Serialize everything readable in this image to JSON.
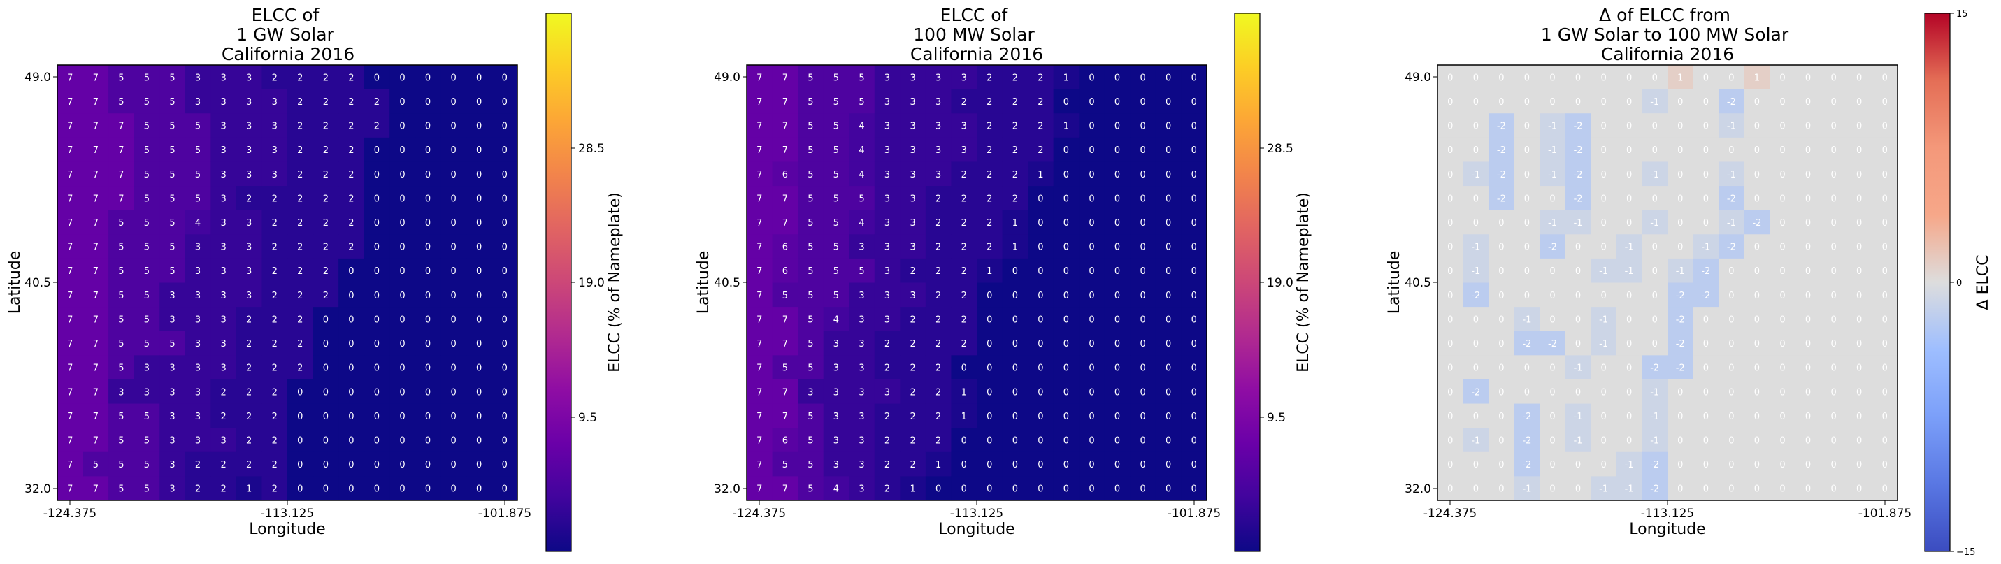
{
  "chart_data": [
    {
      "type": "heatmap",
      "title": "ELCC of\n1 GW Solar\nCalifornia 2016",
      "xlabel": "Longitude",
      "ylabel": "Latitude",
      "xticks": [
        "-124.375",
        "-113.125",
        "-101.875"
      ],
      "yticks": [
        "49.0",
        "40.5",
        "32.0"
      ],
      "colorbar": {
        "label": "ELCC (% of Nameplate)",
        "ticks": [
          "9.5",
          "19.0",
          "28.5"
        ],
        "range": [
          0,
          38
        ],
        "colormap": "plasma"
      },
      "rows_top_to_bottom": [
        [
          7,
          7,
          5,
          5,
          5,
          3,
          3,
          3,
          2,
          2,
          2,
          2,
          0,
          0,
          0,
          0,
          0,
          0
        ],
        [
          7,
          7,
          5,
          5,
          5,
          3,
          3,
          3,
          3,
          2,
          2,
          2,
          2,
          0,
          0,
          0,
          0,
          0
        ],
        [
          7,
          7,
          7,
          5,
          5,
          5,
          3,
          3,
          3,
          2,
          2,
          2,
          2,
          0,
          0,
          0,
          0,
          0
        ],
        [
          7,
          7,
          7,
          5,
          5,
          5,
          3,
          3,
          3,
          2,
          2,
          2,
          0,
          0,
          0,
          0,
          0,
          0
        ],
        [
          7,
          7,
          7,
          5,
          5,
          5,
          3,
          3,
          3,
          2,
          2,
          2,
          0,
          0,
          0,
          0,
          0,
          0
        ],
        [
          7,
          7,
          7,
          5,
          5,
          5,
          3,
          2,
          2,
          2,
          2,
          2,
          0,
          0,
          0,
          0,
          0,
          0
        ],
        [
          7,
          7,
          5,
          5,
          5,
          4,
          3,
          3,
          2,
          2,
          2,
          2,
          0,
          0,
          0,
          0,
          0,
          0
        ],
        [
          7,
          7,
          5,
          5,
          5,
          3,
          3,
          3,
          2,
          2,
          2,
          2,
          0,
          0,
          0,
          0,
          0,
          0
        ],
        [
          7,
          7,
          5,
          5,
          5,
          3,
          3,
          3,
          2,
          2,
          2,
          0,
          0,
          0,
          0,
          0,
          0,
          0
        ],
        [
          7,
          7,
          5,
          5,
          3,
          3,
          3,
          3,
          2,
          2,
          2,
          0,
          0,
          0,
          0,
          0,
          0,
          0
        ],
        [
          7,
          7,
          5,
          5,
          3,
          3,
          3,
          2,
          2,
          2,
          0,
          0,
          0,
          0,
          0,
          0,
          0,
          0
        ],
        [
          7,
          7,
          5,
          5,
          5,
          3,
          3,
          2,
          2,
          2,
          0,
          0,
          0,
          0,
          0,
          0,
          0,
          0
        ],
        [
          7,
          7,
          5,
          3,
          3,
          3,
          3,
          2,
          2,
          2,
          0,
          0,
          0,
          0,
          0,
          0,
          0,
          0
        ],
        [
          7,
          7,
          3,
          3,
          3,
          3,
          2,
          2,
          2,
          0,
          0,
          0,
          0,
          0,
          0,
          0,
          0,
          0
        ],
        [
          7,
          7,
          5,
          5,
          3,
          3,
          2,
          2,
          2,
          0,
          0,
          0,
          0,
          0,
          0,
          0,
          0,
          0
        ],
        [
          7,
          7,
          5,
          5,
          3,
          3,
          3,
          2,
          2,
          0,
          0,
          0,
          0,
          0,
          0,
          0,
          0,
          0
        ],
        [
          7,
          5,
          5,
          5,
          3,
          2,
          2,
          2,
          2,
          0,
          0,
          0,
          0,
          0,
          0,
          0,
          0,
          0
        ],
        [
          7,
          7,
          5,
          5,
          3,
          2,
          2,
          1,
          2,
          0,
          0,
          0,
          0,
          0,
          0,
          0,
          0,
          0
        ]
      ]
    },
    {
      "type": "heatmap",
      "title": "ELCC of\n100 MW Solar\nCalifornia 2016",
      "xlabel": "Longitude",
      "ylabel": "Latitude",
      "xticks": [
        "-124.375",
        "-113.125",
        "-101.875"
      ],
      "yticks": [
        "49.0",
        "40.5",
        "32.0"
      ],
      "colorbar": {
        "label": "ELCC (% of Nameplate)",
        "ticks": [
          "9.5",
          "19.0",
          "28.5"
        ],
        "range": [
          0,
          38
        ],
        "colormap": "plasma"
      },
      "rows_top_to_bottom": [
        [
          7,
          7,
          5,
          5,
          5,
          3,
          3,
          3,
          3,
          2,
          2,
          2,
          1,
          0,
          0,
          0,
          0,
          0
        ],
        [
          7,
          7,
          5,
          5,
          5,
          3,
          3,
          3,
          2,
          2,
          2,
          2,
          0,
          0,
          0,
          0,
          0,
          0
        ],
        [
          7,
          7,
          5,
          5,
          4,
          3,
          3,
          3,
          3,
          2,
          2,
          2,
          1,
          0,
          0,
          0,
          0,
          0
        ],
        [
          7,
          7,
          5,
          5,
          4,
          3,
          3,
          3,
          3,
          2,
          2,
          2,
          0,
          0,
          0,
          0,
          0,
          0
        ],
        [
          7,
          6,
          5,
          5,
          4,
          3,
          3,
          3,
          2,
          2,
          2,
          1,
          0,
          0,
          0,
          0,
          0,
          0
        ],
        [
          7,
          7,
          5,
          5,
          5,
          3,
          3,
          2,
          2,
          2,
          2,
          0,
          0,
          0,
          0,
          0,
          0,
          0
        ],
        [
          7,
          7,
          5,
          5,
          4,
          3,
          3,
          2,
          2,
          2,
          1,
          0,
          0,
          0,
          0,
          0,
          0,
          0
        ],
        [
          7,
          6,
          5,
          5,
          3,
          3,
          3,
          2,
          2,
          2,
          1,
          0,
          0,
          0,
          0,
          0,
          0,
          0
        ],
        [
          7,
          6,
          5,
          5,
          5,
          3,
          2,
          2,
          2,
          1,
          0,
          0,
          0,
          0,
          0,
          0,
          0,
          0
        ],
        [
          7,
          5,
          5,
          5,
          3,
          3,
          3,
          2,
          2,
          0,
          0,
          0,
          0,
          0,
          0,
          0,
          0,
          0
        ],
        [
          7,
          7,
          5,
          4,
          3,
          3,
          2,
          2,
          2,
          0,
          0,
          0,
          0,
          0,
          0,
          0,
          0,
          0
        ],
        [
          7,
          7,
          5,
          3,
          3,
          2,
          2,
          2,
          2,
          0,
          0,
          0,
          0,
          0,
          0,
          0,
          0,
          0
        ],
        [
          7,
          5,
          5,
          3,
          3,
          2,
          2,
          2,
          0,
          0,
          0,
          0,
          0,
          0,
          0,
          0,
          0,
          0
        ],
        [
          7,
          7,
          3,
          3,
          3,
          3,
          2,
          2,
          1,
          0,
          0,
          0,
          0,
          0,
          0,
          0,
          0,
          0
        ],
        [
          7,
          7,
          5,
          3,
          3,
          2,
          2,
          2,
          1,
          0,
          0,
          0,
          0,
          0,
          0,
          0,
          0,
          0
        ],
        [
          7,
          6,
          5,
          3,
          3,
          2,
          2,
          2,
          0,
          0,
          0,
          0,
          0,
          0,
          0,
          0,
          0,
          0
        ],
        [
          7,
          5,
          5,
          3,
          3,
          2,
          2,
          1,
          0,
          0,
          0,
          0,
          0,
          0,
          0,
          0,
          0,
          0
        ],
        [
          7,
          7,
          5,
          4,
          3,
          2,
          1,
          0,
          0,
          0,
          0,
          0,
          0,
          0,
          0,
          0,
          0,
          0
        ]
      ]
    },
    {
      "type": "heatmap",
      "title": "Δ of ELCC from\n1 GW Solar to 100 MW Solar\nCalifornia 2016",
      "xlabel": "Longitude",
      "ylabel": "Latitude",
      "xticks": [
        "-124.375",
        "-113.125",
        "-101.875"
      ],
      "yticks": [
        "49.0",
        "40.5",
        "32.0"
      ],
      "colorbar": {
        "label": "Δ ELCC",
        "ticks": [
          "15",
          "0",
          "−15"
        ],
        "range": [
          -15,
          15
        ],
        "colormap": "coolwarm"
      },
      "rows_top_to_bottom": [
        [
          0,
          0,
          0,
          0,
          0,
          0,
          0,
          0,
          0,
          1,
          0,
          0,
          1,
          0,
          0,
          0,
          0,
          0
        ],
        [
          0,
          0,
          0,
          0,
          0,
          0,
          0,
          0,
          -1,
          0,
          0,
          -2,
          0,
          0,
          0,
          0,
          0,
          0
        ],
        [
          0,
          0,
          -2,
          0,
          -1,
          -2,
          0,
          0,
          0,
          0,
          0,
          -1,
          0,
          0,
          0,
          0,
          0,
          0
        ],
        [
          0,
          0,
          -2,
          0,
          -1,
          -2,
          0,
          0,
          0,
          0,
          0,
          0,
          0,
          0,
          0,
          0,
          0,
          0
        ],
        [
          0,
          -1,
          -2,
          0,
          -1,
          -2,
          0,
          0,
          -1,
          0,
          0,
          -1,
          0,
          0,
          0,
          0,
          0,
          0
        ],
        [
          0,
          0,
          -2,
          0,
          0,
          -2,
          0,
          0,
          0,
          0,
          0,
          -2,
          0,
          0,
          0,
          0,
          0,
          0
        ],
        [
          0,
          0,
          0,
          0,
          -1,
          -1,
          0,
          0,
          -1,
          0,
          0,
          -1,
          -2,
          0,
          0,
          0,
          0,
          0
        ],
        [
          0,
          -1,
          0,
          0,
          -2,
          0,
          0,
          -1,
          0,
          0,
          -1,
          -2,
          0,
          0,
          0,
          0,
          0,
          0
        ],
        [
          0,
          -1,
          0,
          0,
          0,
          0,
          -1,
          -1,
          0,
          -1,
          -2,
          0,
          0,
          0,
          0,
          0,
          0,
          0
        ],
        [
          0,
          -2,
          0,
          0,
          0,
          0,
          0,
          0,
          0,
          -2,
          -2,
          0,
          0,
          0,
          0,
          0,
          0,
          0
        ],
        [
          0,
          0,
          0,
          -1,
          0,
          0,
          -1,
          0,
          0,
          -2,
          0,
          0,
          0,
          0,
          0,
          0,
          0,
          0
        ],
        [
          0,
          0,
          0,
          -2,
          -2,
          0,
          -1,
          0,
          0,
          -2,
          0,
          0,
          0,
          0,
          0,
          0,
          0,
          0
        ],
        [
          0,
          0,
          0,
          0,
          0,
          -1,
          0,
          0,
          -2,
          -2,
          0,
          0,
          0,
          0,
          0,
          0,
          0,
          0
        ],
        [
          0,
          -2,
          0,
          0,
          0,
          0,
          0,
          0,
          -1,
          0,
          0,
          0,
          0,
          0,
          0,
          0,
          0,
          0
        ],
        [
          0,
          0,
          0,
          -2,
          0,
          -1,
          0,
          0,
          -1,
          0,
          0,
          0,
          0,
          0,
          0,
          0,
          0,
          0
        ],
        [
          0,
          -1,
          0,
          -2,
          0,
          -1,
          0,
          0,
          -1,
          0,
          0,
          0,
          0,
          0,
          0,
          0,
          0,
          0
        ],
        [
          0,
          0,
          0,
          -2,
          0,
          0,
          0,
          -1,
          -2,
          0,
          0,
          0,
          0,
          0,
          0,
          0,
          0,
          0
        ],
        [
          0,
          0,
          0,
          -1,
          0,
          0,
          -1,
          -1,
          -2,
          0,
          0,
          0,
          0,
          0,
          0,
          0,
          0,
          0
        ]
      ]
    }
  ]
}
